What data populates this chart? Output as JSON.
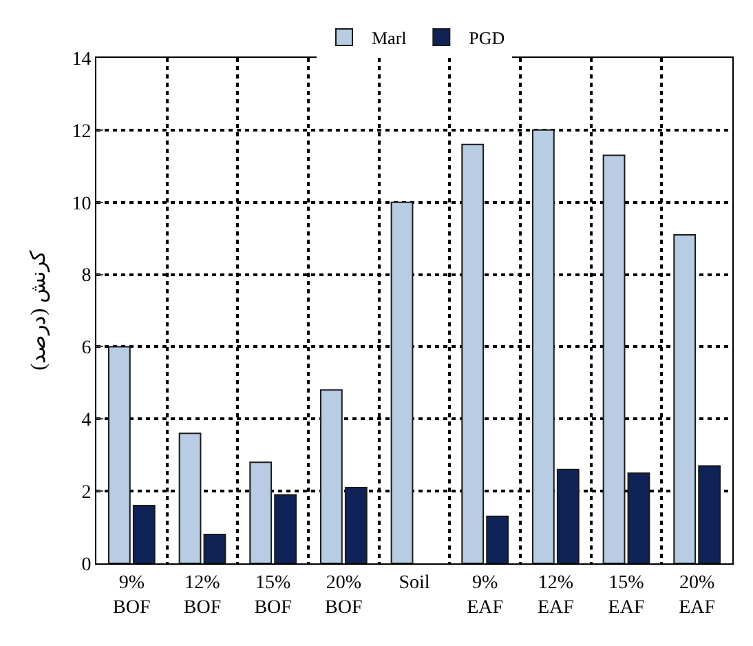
{
  "chart_data": {
    "type": "bar",
    "ylabel": "کرنش (درصد)",
    "categories": [
      "9%\nBOF",
      "12%\nBOF",
      "15%\nBOF",
      "20%\nBOF",
      "Soil",
      "9%\nEAF",
      "12%\nEAF",
      "15%\nEAF",
      "20%\nEAF"
    ],
    "series": [
      {
        "name": "Marl",
        "color": "#b8cce4",
        "values": [
          6.0,
          3.6,
          2.8,
          4.8,
          10.0,
          11.6,
          12.0,
          11.3,
          9.1
        ]
      },
      {
        "name": "PGD",
        "color": "#0f2356",
        "values": [
          1.6,
          0.8,
          1.9,
          2.1,
          null,
          1.3,
          2.6,
          2.5,
          2.7
        ]
      }
    ],
    "ylim": [
      0,
      14
    ],
    "yticks": [
      0,
      2,
      4,
      6,
      8,
      10,
      12,
      14
    ],
    "grid": true,
    "legend": "top"
  }
}
